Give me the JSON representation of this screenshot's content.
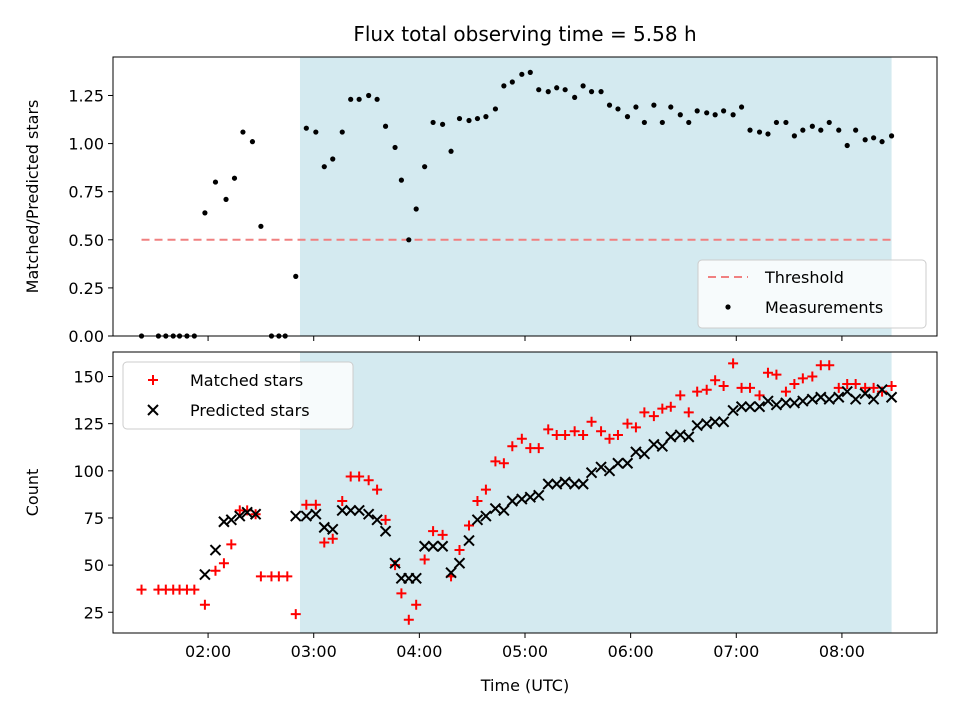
{
  "chart_data": [
    {
      "type": "scatter",
      "title": "Flux total observing time = 5.58 h",
      "xlabel": "",
      "ylabel": "Matched/Predicted stars",
      "ylim": [
        0,
        1.45
      ],
      "xlim_hours": [
        1.1,
        8.9
      ],
      "yticks": [
        "0.00",
        "0.25",
        "0.50",
        "0.75",
        "1.00",
        "1.25"
      ],
      "ytick_values": [
        0,
        0.25,
        0.5,
        0.75,
        1.0,
        1.25
      ],
      "shaded_region": {
        "from_hours": 2.87,
        "to_hours": 8.47,
        "color": "#d4eaf0"
      },
      "legend_position": "lower-right",
      "threshold": {
        "name": "Threshold",
        "value": 0.5,
        "from_hours": 1.37,
        "to_hours": 8.47,
        "color": "#f08080",
        "style": "dashed"
      },
      "series": [
        {
          "name": "Measurements",
          "marker": "dot",
          "color": "#000000",
          "points": [
            [
              1.37,
              0.0
            ],
            [
              1.53,
              0.0
            ],
            [
              1.6,
              0.0
            ],
            [
              1.67,
              0.0
            ],
            [
              1.73,
              0.0
            ],
            [
              1.8,
              0.0
            ],
            [
              1.87,
              0.0
            ],
            [
              1.97,
              0.64
            ],
            [
              2.07,
              0.8
            ],
            [
              2.17,
              0.71
            ],
            [
              2.25,
              0.82
            ],
            [
              2.33,
              1.06
            ],
            [
              2.42,
              1.01
            ],
            [
              2.5,
              0.57
            ],
            [
              2.6,
              0.0
            ],
            [
              2.67,
              0.0
            ],
            [
              2.73,
              0.0
            ],
            [
              2.83,
              0.31
            ],
            [
              2.93,
              1.08
            ],
            [
              3.02,
              1.06
            ],
            [
              3.1,
              0.88
            ],
            [
              3.18,
              0.92
            ],
            [
              3.27,
              1.06
            ],
            [
              3.35,
              1.23
            ],
            [
              3.43,
              1.23
            ],
            [
              3.52,
              1.25
            ],
            [
              3.6,
              1.23
            ],
            [
              3.68,
              1.09
            ],
            [
              3.77,
              0.98
            ],
            [
              3.83,
              0.81
            ],
            [
              3.9,
              0.5
            ],
            [
              3.97,
              0.66
            ],
            [
              4.05,
              0.88
            ],
            [
              4.13,
              1.11
            ],
            [
              4.22,
              1.1
            ],
            [
              4.3,
              0.96
            ],
            [
              4.38,
              1.13
            ],
            [
              4.47,
              1.12
            ],
            [
              4.55,
              1.13
            ],
            [
              4.63,
              1.14
            ],
            [
              4.72,
              1.18
            ],
            [
              4.8,
              1.3
            ],
            [
              4.88,
              1.32
            ],
            [
              4.97,
              1.36
            ],
            [
              5.05,
              1.37
            ],
            [
              5.13,
              1.28
            ],
            [
              5.22,
              1.27
            ],
            [
              5.3,
              1.29
            ],
            [
              5.38,
              1.28
            ],
            [
              5.47,
              1.24
            ],
            [
              5.55,
              1.3
            ],
            [
              5.63,
              1.27
            ],
            [
              5.72,
              1.27
            ],
            [
              5.8,
              1.2
            ],
            [
              5.88,
              1.18
            ],
            [
              5.97,
              1.14
            ],
            [
              6.05,
              1.19
            ],
            [
              6.13,
              1.11
            ],
            [
              6.22,
              1.2
            ],
            [
              6.3,
              1.11
            ],
            [
              6.38,
              1.19
            ],
            [
              6.47,
              1.15
            ],
            [
              6.55,
              1.11
            ],
            [
              6.63,
              1.17
            ],
            [
              6.72,
              1.16
            ],
            [
              6.8,
              1.15
            ],
            [
              6.88,
              1.17
            ],
            [
              6.97,
              1.15
            ],
            [
              7.05,
              1.19
            ],
            [
              7.13,
              1.07
            ],
            [
              7.22,
              1.06
            ],
            [
              7.3,
              1.05
            ],
            [
              7.38,
              1.11
            ],
            [
              7.47,
              1.11
            ],
            [
              7.55,
              1.04
            ],
            [
              7.63,
              1.07
            ],
            [
              7.72,
              1.09
            ],
            [
              7.8,
              1.07
            ],
            [
              7.88,
              1.11
            ],
            [
              7.97,
              1.07
            ],
            [
              8.05,
              0.99
            ],
            [
              8.13,
              1.07
            ],
            [
              8.22,
              1.02
            ],
            [
              8.3,
              1.03
            ],
            [
              8.38,
              1.01
            ],
            [
              8.47,
              1.04
            ]
          ]
        }
      ]
    },
    {
      "type": "scatter",
      "title": "",
      "xlabel": "Time (UTC)",
      "ylabel": "Count",
      "ylim": [
        14,
        163
      ],
      "xlim_hours": [
        1.1,
        8.9
      ],
      "yticks": [
        "25",
        "50",
        "75",
        "100",
        "125",
        "150"
      ],
      "ytick_values": [
        25,
        50,
        75,
        100,
        125,
        150
      ],
      "xticks": [
        "02:00",
        "03:00",
        "04:00",
        "05:00",
        "06:00",
        "07:00",
        "08:00"
      ],
      "xtick_values": [
        2,
        3,
        4,
        5,
        6,
        7,
        8
      ],
      "shaded_region": {
        "from_hours": 2.87,
        "to_hours": 8.47,
        "color": "#d4eaf0"
      },
      "legend_position": "upper-left",
      "series": [
        {
          "name": "Matched stars",
          "marker": "plus",
          "color": "#ff0000",
          "points": [
            [
              1.37,
              37
            ],
            [
              1.53,
              37
            ],
            [
              1.6,
              37
            ],
            [
              1.67,
              37
            ],
            [
              1.73,
              37
            ],
            [
              1.8,
              37
            ],
            [
              1.87,
              37
            ],
            [
              1.97,
              29
            ],
            [
              2.07,
              47
            ],
            [
              2.15,
              51
            ],
            [
              2.22,
              61
            ],
            [
              2.3,
              79
            ],
            [
              2.37,
              79
            ],
            [
              2.45,
              77
            ],
            [
              2.5,
              44
            ],
            [
              2.6,
              44
            ],
            [
              2.67,
              44
            ],
            [
              2.75,
              44
            ],
            [
              2.83,
              24
            ],
            [
              2.93,
              82
            ],
            [
              3.02,
              82
            ],
            [
              3.1,
              62
            ],
            [
              3.18,
              64
            ],
            [
              3.27,
              84
            ],
            [
              3.35,
              97
            ],
            [
              3.43,
              97
            ],
            [
              3.52,
              95
            ],
            [
              3.6,
              90
            ],
            [
              3.68,
              74
            ],
            [
              3.77,
              50
            ],
            [
              3.83,
              35
            ],
            [
              3.9,
              21
            ],
            [
              3.97,
              29
            ],
            [
              4.05,
              53
            ],
            [
              4.13,
              68
            ],
            [
              4.22,
              66
            ],
            [
              4.3,
              44
            ],
            [
              4.38,
              58
            ],
            [
              4.47,
              71
            ],
            [
              4.55,
              84
            ],
            [
              4.63,
              90
            ],
            [
              4.72,
              105
            ],
            [
              4.8,
              104
            ],
            [
              4.88,
              113
            ],
            [
              4.97,
              117
            ],
            [
              5.05,
              112
            ],
            [
              5.13,
              112
            ],
            [
              5.22,
              122
            ],
            [
              5.3,
              119
            ],
            [
              5.38,
              119
            ],
            [
              5.47,
              121
            ],
            [
              5.55,
              119
            ],
            [
              5.63,
              126
            ],
            [
              5.72,
              121
            ],
            [
              5.8,
              117
            ],
            [
              5.88,
              119
            ],
            [
              5.97,
              125
            ],
            [
              6.05,
              123
            ],
            [
              6.13,
              131
            ],
            [
              6.22,
              129
            ],
            [
              6.3,
              133
            ],
            [
              6.38,
              134
            ],
            [
              6.47,
              140
            ],
            [
              6.55,
              131
            ],
            [
              6.63,
              142
            ],
            [
              6.72,
              143
            ],
            [
              6.8,
              148
            ],
            [
              6.88,
              145
            ],
            [
              6.97,
              157
            ],
            [
              7.05,
              144
            ],
            [
              7.13,
              144
            ],
            [
              7.22,
              140
            ],
            [
              7.3,
              152
            ],
            [
              7.38,
              151
            ],
            [
              7.47,
              142
            ],
            [
              7.55,
              146
            ],
            [
              7.63,
              149
            ],
            [
              7.72,
              150
            ],
            [
              7.8,
              156
            ],
            [
              7.88,
              156
            ],
            [
              7.97,
              144
            ],
            [
              8.05,
              146
            ],
            [
              8.13,
              146
            ],
            [
              8.22,
              144
            ],
            [
              8.3,
              144
            ],
            [
              8.38,
              142
            ],
            [
              8.47,
              145
            ]
          ]
        },
        {
          "name": "Predicted stars",
          "marker": "x",
          "color": "#000000",
          "points": [
            [
              1.97,
              45
            ],
            [
              2.07,
              58
            ],
            [
              2.15,
              73
            ],
            [
              2.22,
              74
            ],
            [
              2.3,
              76
            ],
            [
              2.37,
              78
            ],
            [
              2.45,
              77
            ],
            [
              2.83,
              76
            ],
            [
              2.93,
              76
            ],
            [
              3.02,
              77
            ],
            [
              3.1,
              70
            ],
            [
              3.18,
              69
            ],
            [
              3.27,
              79
            ],
            [
              3.35,
              79
            ],
            [
              3.43,
              79
            ],
            [
              3.52,
              77
            ],
            [
              3.6,
              74
            ],
            [
              3.68,
              68
            ],
            [
              3.77,
              51
            ],
            [
              3.83,
              43
            ],
            [
              3.9,
              43
            ],
            [
              3.97,
              43
            ],
            [
              4.05,
              60
            ],
            [
              4.13,
              60
            ],
            [
              4.22,
              60
            ],
            [
              4.3,
              46
            ],
            [
              4.38,
              51
            ],
            [
              4.47,
              63
            ],
            [
              4.55,
              74
            ],
            [
              4.63,
              76
            ],
            [
              4.72,
              80
            ],
            [
              4.8,
              79
            ],
            [
              4.88,
              84
            ],
            [
              4.97,
              85
            ],
            [
              5.05,
              86
            ],
            [
              5.13,
              87
            ],
            [
              5.22,
              93
            ],
            [
              5.3,
              93
            ],
            [
              5.38,
              94
            ],
            [
              5.47,
              93
            ],
            [
              5.55,
              93
            ],
            [
              5.63,
              99
            ],
            [
              5.72,
              102
            ],
            [
              5.8,
              100
            ],
            [
              5.88,
              104
            ],
            [
              5.97,
              104
            ],
            [
              6.05,
              110
            ],
            [
              6.13,
              109
            ],
            [
              6.22,
              114
            ],
            [
              6.3,
              113
            ],
            [
              6.38,
              118
            ],
            [
              6.47,
              119
            ],
            [
              6.55,
              118
            ],
            [
              6.63,
              124
            ],
            [
              6.72,
              125
            ],
            [
              6.8,
              126
            ],
            [
              6.88,
              126
            ],
            [
              6.97,
              132
            ],
            [
              7.05,
              134
            ],
            [
              7.13,
              134
            ],
            [
              7.22,
              134
            ],
            [
              7.3,
              137
            ],
            [
              7.38,
              135
            ],
            [
              7.47,
              136
            ],
            [
              7.55,
              136
            ],
            [
              7.63,
              137
            ],
            [
              7.72,
              138
            ],
            [
              7.8,
              139
            ],
            [
              7.88,
              138
            ],
            [
              7.97,
              139
            ],
            [
              8.05,
              142
            ],
            [
              8.13,
              138
            ],
            [
              8.22,
              141
            ],
            [
              8.3,
              138
            ],
            [
              8.38,
              143
            ],
            [
              8.47,
              139
            ]
          ]
        }
      ]
    }
  ]
}
